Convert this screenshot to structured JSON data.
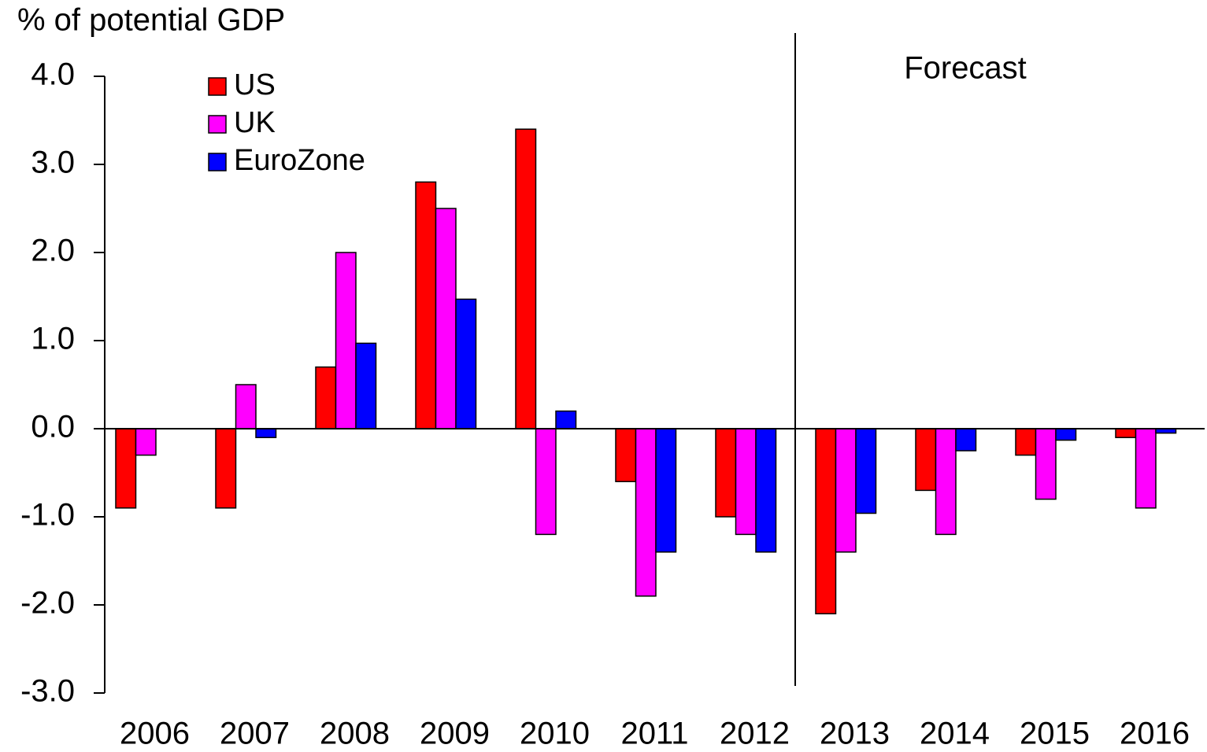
{
  "chart_data": {
    "type": "bar",
    "y_label": "% of potential GDP",
    "annotation": "Forecast",
    "categories": [
      "2006",
      "2007",
      "2008",
      "2009",
      "2010",
      "2011",
      "2012",
      "2013",
      "2014",
      "2015",
      "2016"
    ],
    "series": [
      {
        "name": "US",
        "color": "#ff0000",
        "values": [
          -0.9,
          -0.9,
          0.7,
          2.8,
          3.4,
          -0.6,
          -1.0,
          -2.1,
          -0.7,
          -0.3,
          -0.1
        ]
      },
      {
        "name": "UK",
        "color": "#ff00ff",
        "values": [
          -0.3,
          0.5,
          2.0,
          2.5,
          -1.2,
          -1.9,
          -1.2,
          -1.4,
          -1.2,
          -0.8,
          -0.9
        ]
      },
      {
        "name": "EuroZone",
        "color": "#0000ff",
        "values": [
          0,
          -0.1,
          0.97,
          1.47,
          0.2,
          -1.4,
          -1.4,
          -0.96,
          -0.25,
          -0.13,
          -0.05
        ]
      }
    ],
    "ylim": [
      -3,
      4
    ],
    "yticks": [
      {
        "value": -3,
        "label": "-3.0"
      },
      {
        "value": -2,
        "label": "-2.0"
      },
      {
        "value": -1,
        "label": "-1.0"
      },
      {
        "value": 0,
        "label": "0.0"
      },
      {
        "value": 1,
        "label": "1.0"
      },
      {
        "value": 2,
        "label": "2.0"
      },
      {
        "value": 3,
        "label": "3.0"
      },
      {
        "value": 4,
        "label": "4.0"
      }
    ],
    "legend": "upper left"
  }
}
